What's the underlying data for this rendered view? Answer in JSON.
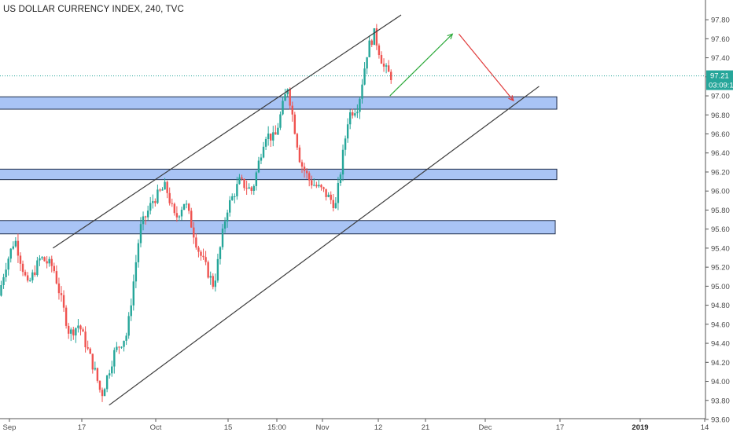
{
  "title": "US DOLLAR CURRENCY INDEX, 240, TVC",
  "colors": {
    "up": "#26a69a",
    "down": "#ef5350",
    "zone_fill": "#a9c4f5",
    "zone_stroke": "#1f2d4a",
    "channel": "#3c3c3c",
    "arrow_up": "#2eaa3c",
    "arrow_down": "#e03a3a",
    "price_line": "#26a69a",
    "axis": "#555555"
  },
  "price_tag": {
    "price": "97.21",
    "countdown": "03:09:1"
  },
  "chart_data": {
    "type": "candlestick",
    "y_axis": {
      "min": 93.6,
      "max": 97.9,
      "ticks": [
        "93.60",
        "93.80",
        "94.00",
        "94.20",
        "94.40",
        "94.60",
        "94.80",
        "95.00",
        "95.20",
        "95.40",
        "95.60",
        "95.80",
        "96.00",
        "96.20",
        "96.40",
        "96.60",
        "96.80",
        "97.00",
        "97.20",
        "97.40",
        "97.60",
        "97.80"
      ]
    },
    "x_axis": {
      "ticks": [
        {
          "label": "Sep",
          "bold": false
        },
        {
          "label": "17",
          "bold": false
        },
        {
          "label": "Oct",
          "bold": false
        },
        {
          "label": "15",
          "bold": false
        },
        {
          "label": "15:00",
          "bold": false
        },
        {
          "label": "Nov",
          "bold": false
        },
        {
          "label": "12",
          "bold": false
        },
        {
          "label": "21",
          "bold": false
        },
        {
          "label": "Dec",
          "bold": false
        },
        {
          "label": "17",
          "bold": false
        },
        {
          "label": "2019",
          "bold": true
        },
        {
          "label": "14",
          "bold": false
        }
      ]
    },
    "price_anchors": [
      {
        "t": 0.0,
        "p": 94.9
      },
      {
        "t": 0.02,
        "p": 95.2
      },
      {
        "t": 0.05,
        "p": 95.5
      },
      {
        "t": 0.09,
        "p": 95.0
      },
      {
        "t": 0.13,
        "p": 95.3
      },
      {
        "t": 0.17,
        "p": 95.2
      },
      {
        "t": 0.22,
        "p": 94.5
      },
      {
        "t": 0.25,
        "p": 94.6
      },
      {
        "t": 0.3,
        "p": 94.1
      },
      {
        "t": 0.32,
        "p": 93.85
      },
      {
        "t": 0.36,
        "p": 94.3
      },
      {
        "t": 0.4,
        "p": 94.5
      },
      {
        "t": 0.44,
        "p": 95.6
      },
      {
        "t": 0.48,
        "p": 95.9
      },
      {
        "t": 0.52,
        "p": 96.05
      },
      {
        "t": 0.55,
        "p": 95.7
      },
      {
        "t": 0.58,
        "p": 95.9
      },
      {
        "t": 0.62,
        "p": 95.4
      },
      {
        "t": 0.67,
        "p": 95.0
      },
      {
        "t": 0.71,
        "p": 95.8
      },
      {
        "t": 0.75,
        "p": 96.1
      },
      {
        "t": 0.79,
        "p": 96.0
      },
      {
        "t": 0.83,
        "p": 96.6
      },
      {
        "t": 0.86,
        "p": 96.55
      },
      {
        "t": 0.9,
        "p": 97.1
      },
      {
        "t": 0.94,
        "p": 96.3
      },
      {
        "t": 0.97,
        "p": 96.1
      },
      {
        "t": 1.01,
        "p": 96.0
      },
      {
        "t": 1.05,
        "p": 95.85
      },
      {
        "t": 1.09,
        "p": 96.8
      },
      {
        "t": 1.12,
        "p": 96.9
      },
      {
        "t": 1.15,
        "p": 97.5
      },
      {
        "t": 1.17,
        "p": 97.65
      },
      {
        "t": 1.2,
        "p": 97.3
      },
      {
        "t": 1.22,
        "p": 97.21
      }
    ],
    "zones": [
      {
        "low": 96.86,
        "high": 96.99
      },
      {
        "low": 96.12,
        "high": 96.23
      },
      {
        "low": 95.55,
        "high": 95.69
      }
    ],
    "channel_lines": [
      {
        "from": {
          "t": 0.165,
          "p": 95.4
        },
        "to": {
          "t": 1.25,
          "p": 97.85
        }
      },
      {
        "from": {
          "t": 0.34,
          "p": 93.75
        },
        "to": {
          "t": 1.68,
          "p": 97.1
        }
      }
    ],
    "arrows": [
      {
        "kind": "up",
        "from": {
          "t": 1.215,
          "p": 97.0
        },
        "to": {
          "t": 1.41,
          "p": 97.65
        }
      },
      {
        "kind": "down",
        "from": {
          "t": 1.43,
          "p": 97.65
        },
        "to": {
          "t": 1.6,
          "p": 96.95
        }
      }
    ]
  }
}
